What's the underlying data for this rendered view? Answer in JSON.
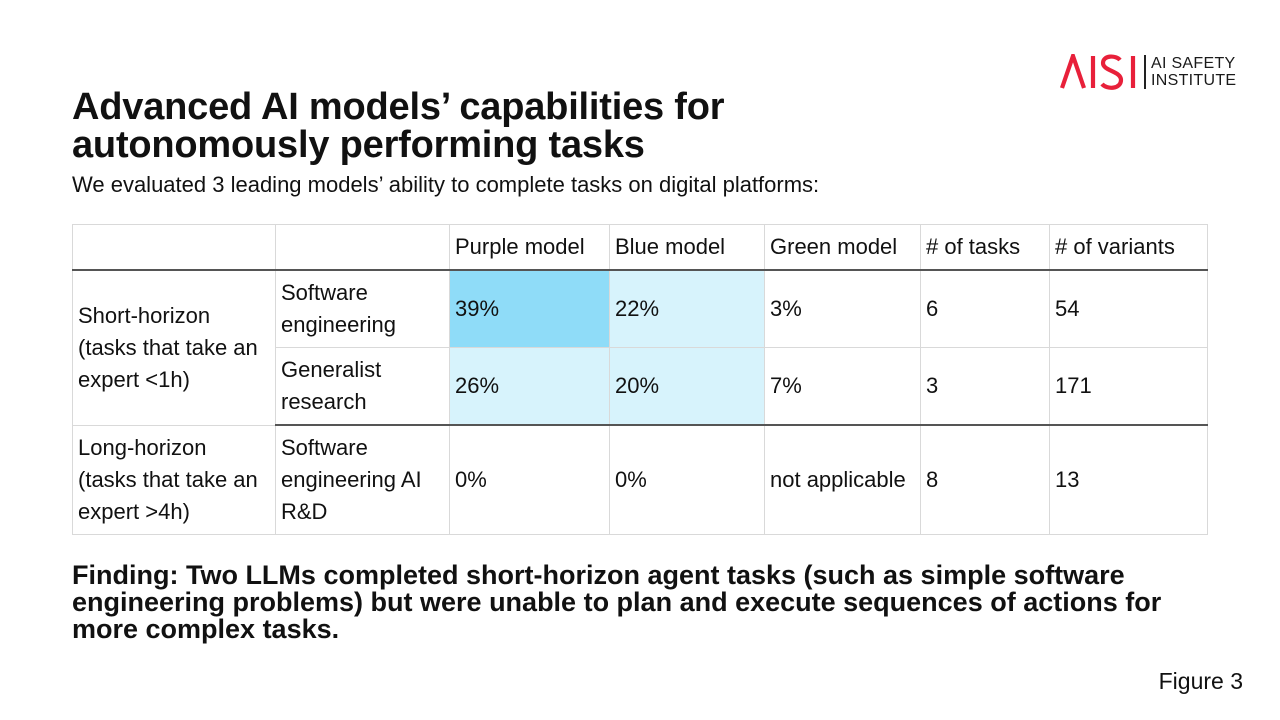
{
  "logo": {
    "mark": "AISI",
    "line1": "AI SAFETY",
    "line2": "INSTITUTE",
    "brand_color": "#e8203a"
  },
  "title": {
    "line1": "Advanced AI models’ capabilities for",
    "line2": "autonomously performing tasks"
  },
  "subtitle": "We evaluated 3 leading models’ ability to complete tasks on digital platforms:",
  "table": {
    "headers": [
      "",
      "",
      "Purple model",
      "Blue model",
      "Green model",
      "# of tasks",
      "# of variants"
    ],
    "groups": [
      {
        "label": "Short-horizon (tasks that take an expert <1h)",
        "rows": [
          {
            "category": "Software engineering",
            "purple": "39%",
            "blue": "22%",
            "green": "3%",
            "tasks": "6",
            "variants": "54"
          },
          {
            "category": "Generalist research",
            "purple": "26%",
            "blue": "20%",
            "green": "7%",
            "tasks": "3",
            "variants": "171"
          }
        ]
      },
      {
        "label": "Long-horizon (tasks that take an expert >4h)",
        "rows": [
          {
            "category": "Software engineering AI R&D",
            "purple": "0%",
            "blue": "0%",
            "green": "not applicable",
            "tasks": "8",
            "variants": "13"
          }
        ]
      }
    ],
    "highlight_colors": {
      "strong": "#8fdcf8",
      "light": "#d7f3fc"
    }
  },
  "finding": "Finding: Two LLMs completed short-horizon agent tasks (such as simple software engineering problems) but were unable to plan and execute sequences of actions for more complex tasks.",
  "figure_label": "Figure 3"
}
